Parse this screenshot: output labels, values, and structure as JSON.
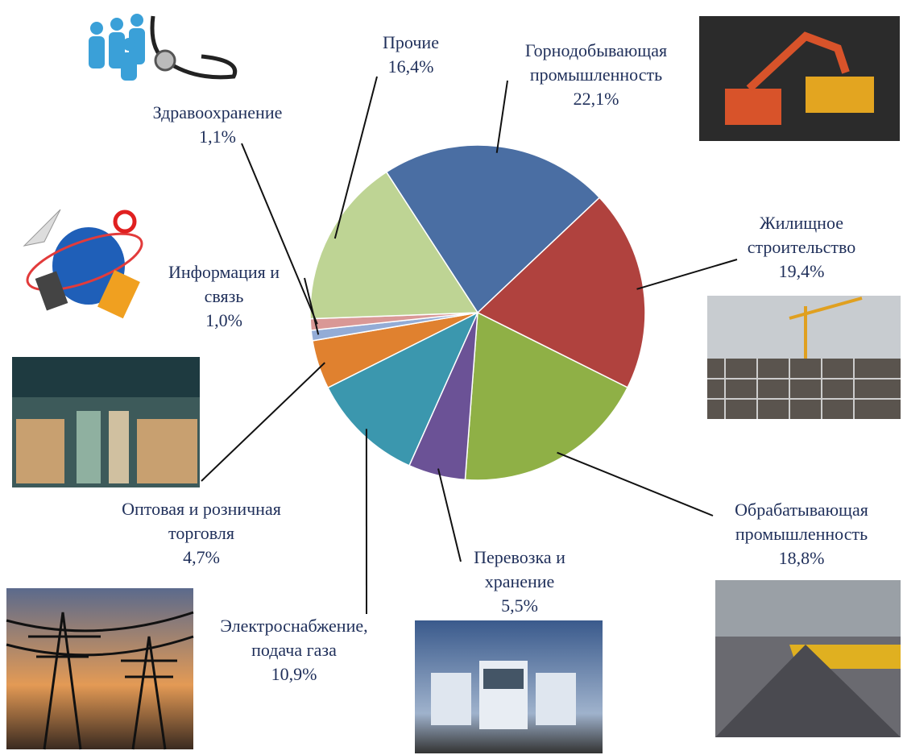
{
  "chart_data": {
    "type": "pie",
    "categories": [
      "Горнодобывающая промышленность",
      "Жилищное строительство",
      "Обрабатывающая промышленность",
      "Перевозка и хранение",
      "Электроснабжение, подача газа",
      "Оптовая и розничная торговля",
      "Информация и связь",
      "Здравоохранение",
      "Прочие"
    ],
    "values": [
      22.1,
      19.4,
      18.8,
      5.5,
      10.9,
      4.7,
      1.0,
      1.1,
      16.4
    ],
    "value_labels": [
      "22,1%",
      "19,4%",
      "18,8%",
      "5,5%",
      "10,9%",
      "4,7%",
      "1,0%",
      "1,1%",
      "16,4%"
    ],
    "colors": [
      "#4a6ea3",
      "#b0423e",
      "#8fb046",
      "#6b5296",
      "#3b97ae",
      "#e0812f",
      "#93acd6",
      "#d99896",
      "#bed494"
    ]
  }
}
